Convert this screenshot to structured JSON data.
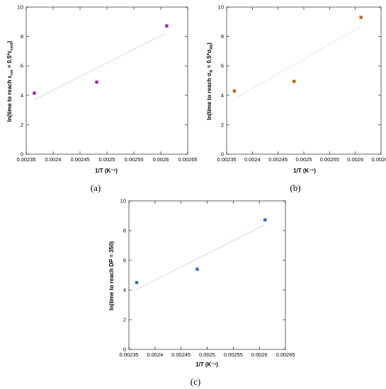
{
  "chart_data": [
    {
      "type": "scatter",
      "caption": "(a)",
      "xlabel": "1/T (K⁻¹)",
      "ylabel_main": "ln(time to reach ε",
      "ylabel_sub1": "cm",
      "ylabel_mid": " = 0.5*ε",
      "ylabel_sub2": "cm0",
      "ylabel_end": ")",
      "xlim": [
        0.00235,
        0.00265
      ],
      "ylim": [
        0,
        10
      ],
      "x_ticks": [
        "0.00235",
        "0.0024",
        "0.00245",
        "0.0025",
        "0.00255",
        "0.0026",
        "0.00265"
      ],
      "y_ticks": [
        "0",
        "2",
        "4",
        "6",
        "8",
        "10"
      ],
      "marker_color": "#9b27b0",
      "line_color": "#8fb8d8",
      "points": [
        {
          "x": 0.002365,
          "y": 4.15
        },
        {
          "x": 0.002481,
          "y": 4.9
        },
        {
          "x": 0.002611,
          "y": 8.72
        }
      ],
      "fit": [
        {
          "x": 0.002365,
          "y": 3.7
        },
        {
          "x": 0.002611,
          "y": 8.25
        }
      ]
    },
    {
      "type": "scatter",
      "caption": "(b)",
      "xlabel": "1/T (K⁻¹)",
      "ylabel_main": "ln(time to reach σ",
      "ylabel_sub1": "R",
      "ylabel_mid": " = 0.5*σ",
      "ylabel_sub2": "R0",
      "ylabel_end": ")",
      "xlim": [
        0.00235,
        0.00265
      ],
      "ylim": [
        0,
        10
      ],
      "x_ticks": [
        "0.00235",
        "0.0024",
        "0.00245",
        "0.0025",
        "0.00255",
        "0.0026",
        "0.00265"
      ],
      "y_ticks": [
        "0",
        "2",
        "4",
        "6",
        "8",
        "10"
      ],
      "marker_color": "#c0661a",
      "line_color": "#e7c9a0",
      "points": [
        {
          "x": 0.002365,
          "y": 4.3
        },
        {
          "x": 0.002481,
          "y": 4.95
        },
        {
          "x": 0.002611,
          "y": 9.3
        }
      ],
      "fit": [
        {
          "x": 0.002365,
          "y": 3.75
        },
        {
          "x": 0.002611,
          "y": 8.7
        }
      ]
    },
    {
      "type": "scatter",
      "caption": "(c)",
      "xlabel": "1/T (K⁻¹)",
      "ylabel_main": "ln(time to reach DP = 350)",
      "ylabel_sub1": "",
      "ylabel_mid": "",
      "ylabel_sub2": "",
      "ylabel_end": "",
      "xlim": [
        0.00235,
        0.00265
      ],
      "ylim": [
        0,
        10
      ],
      "x_ticks": [
        "0.00235",
        "0.0024",
        "0.00245",
        "0.0025",
        "0.00255",
        "0.0026",
        "0.00265"
      ],
      "y_ticks": [
        "0",
        "2",
        "4",
        "6",
        "8",
        "10"
      ],
      "marker_color": "#2e72c9",
      "line_color": "#8fb8d8",
      "points": [
        {
          "x": 0.002365,
          "y": 4.5
        },
        {
          "x": 0.002481,
          "y": 5.4
        },
        {
          "x": 0.002611,
          "y": 8.72
        }
      ],
      "fit": [
        {
          "x": 0.002365,
          "y": 4.05
        },
        {
          "x": 0.002611,
          "y": 8.4
        }
      ]
    }
  ]
}
